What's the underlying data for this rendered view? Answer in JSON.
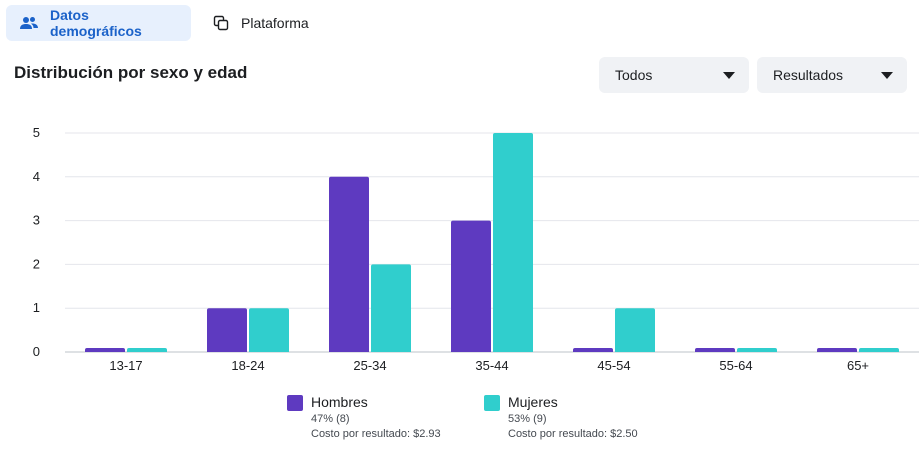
{
  "tabs": [
    {
      "label": "Datos demográficos",
      "icon": "people-icon",
      "active": true
    },
    {
      "label": "Plataforma",
      "icon": "platform-icon",
      "active": false
    }
  ],
  "section_title": "Distribución por sexo y edad",
  "dropdowns": {
    "filter": {
      "value": "Todos"
    },
    "metric": {
      "value": "Resultados"
    }
  },
  "colors": {
    "hombres": "#5e3ac0",
    "mujeres": "#30cecd",
    "accent": "#1b62c9"
  },
  "chart_data": {
    "type": "bar",
    "categories": [
      "13-17",
      "18-24",
      "25-34",
      "35-44",
      "45-54",
      "55-64",
      "65+"
    ],
    "series": [
      {
        "name": "Hombres",
        "values": [
          0,
          1,
          4,
          3,
          0,
          0,
          0
        ]
      },
      {
        "name": "Mujeres",
        "values": [
          0,
          1,
          2,
          5,
          1,
          0,
          0
        ]
      }
    ],
    "yticks": [
      "0",
      "1",
      "2",
      "3",
      "4",
      "5"
    ],
    "ylim": [
      0,
      5
    ],
    "grid": true,
    "legend_placement": "bottom"
  },
  "legend": [
    {
      "name": "Hombres",
      "share": "47% (8)",
      "cost": "Costo por resultado: $2.93"
    },
    {
      "name": "Mujeres",
      "share": "53% (9)",
      "cost": "Costo por resultado: $2.50"
    }
  ]
}
